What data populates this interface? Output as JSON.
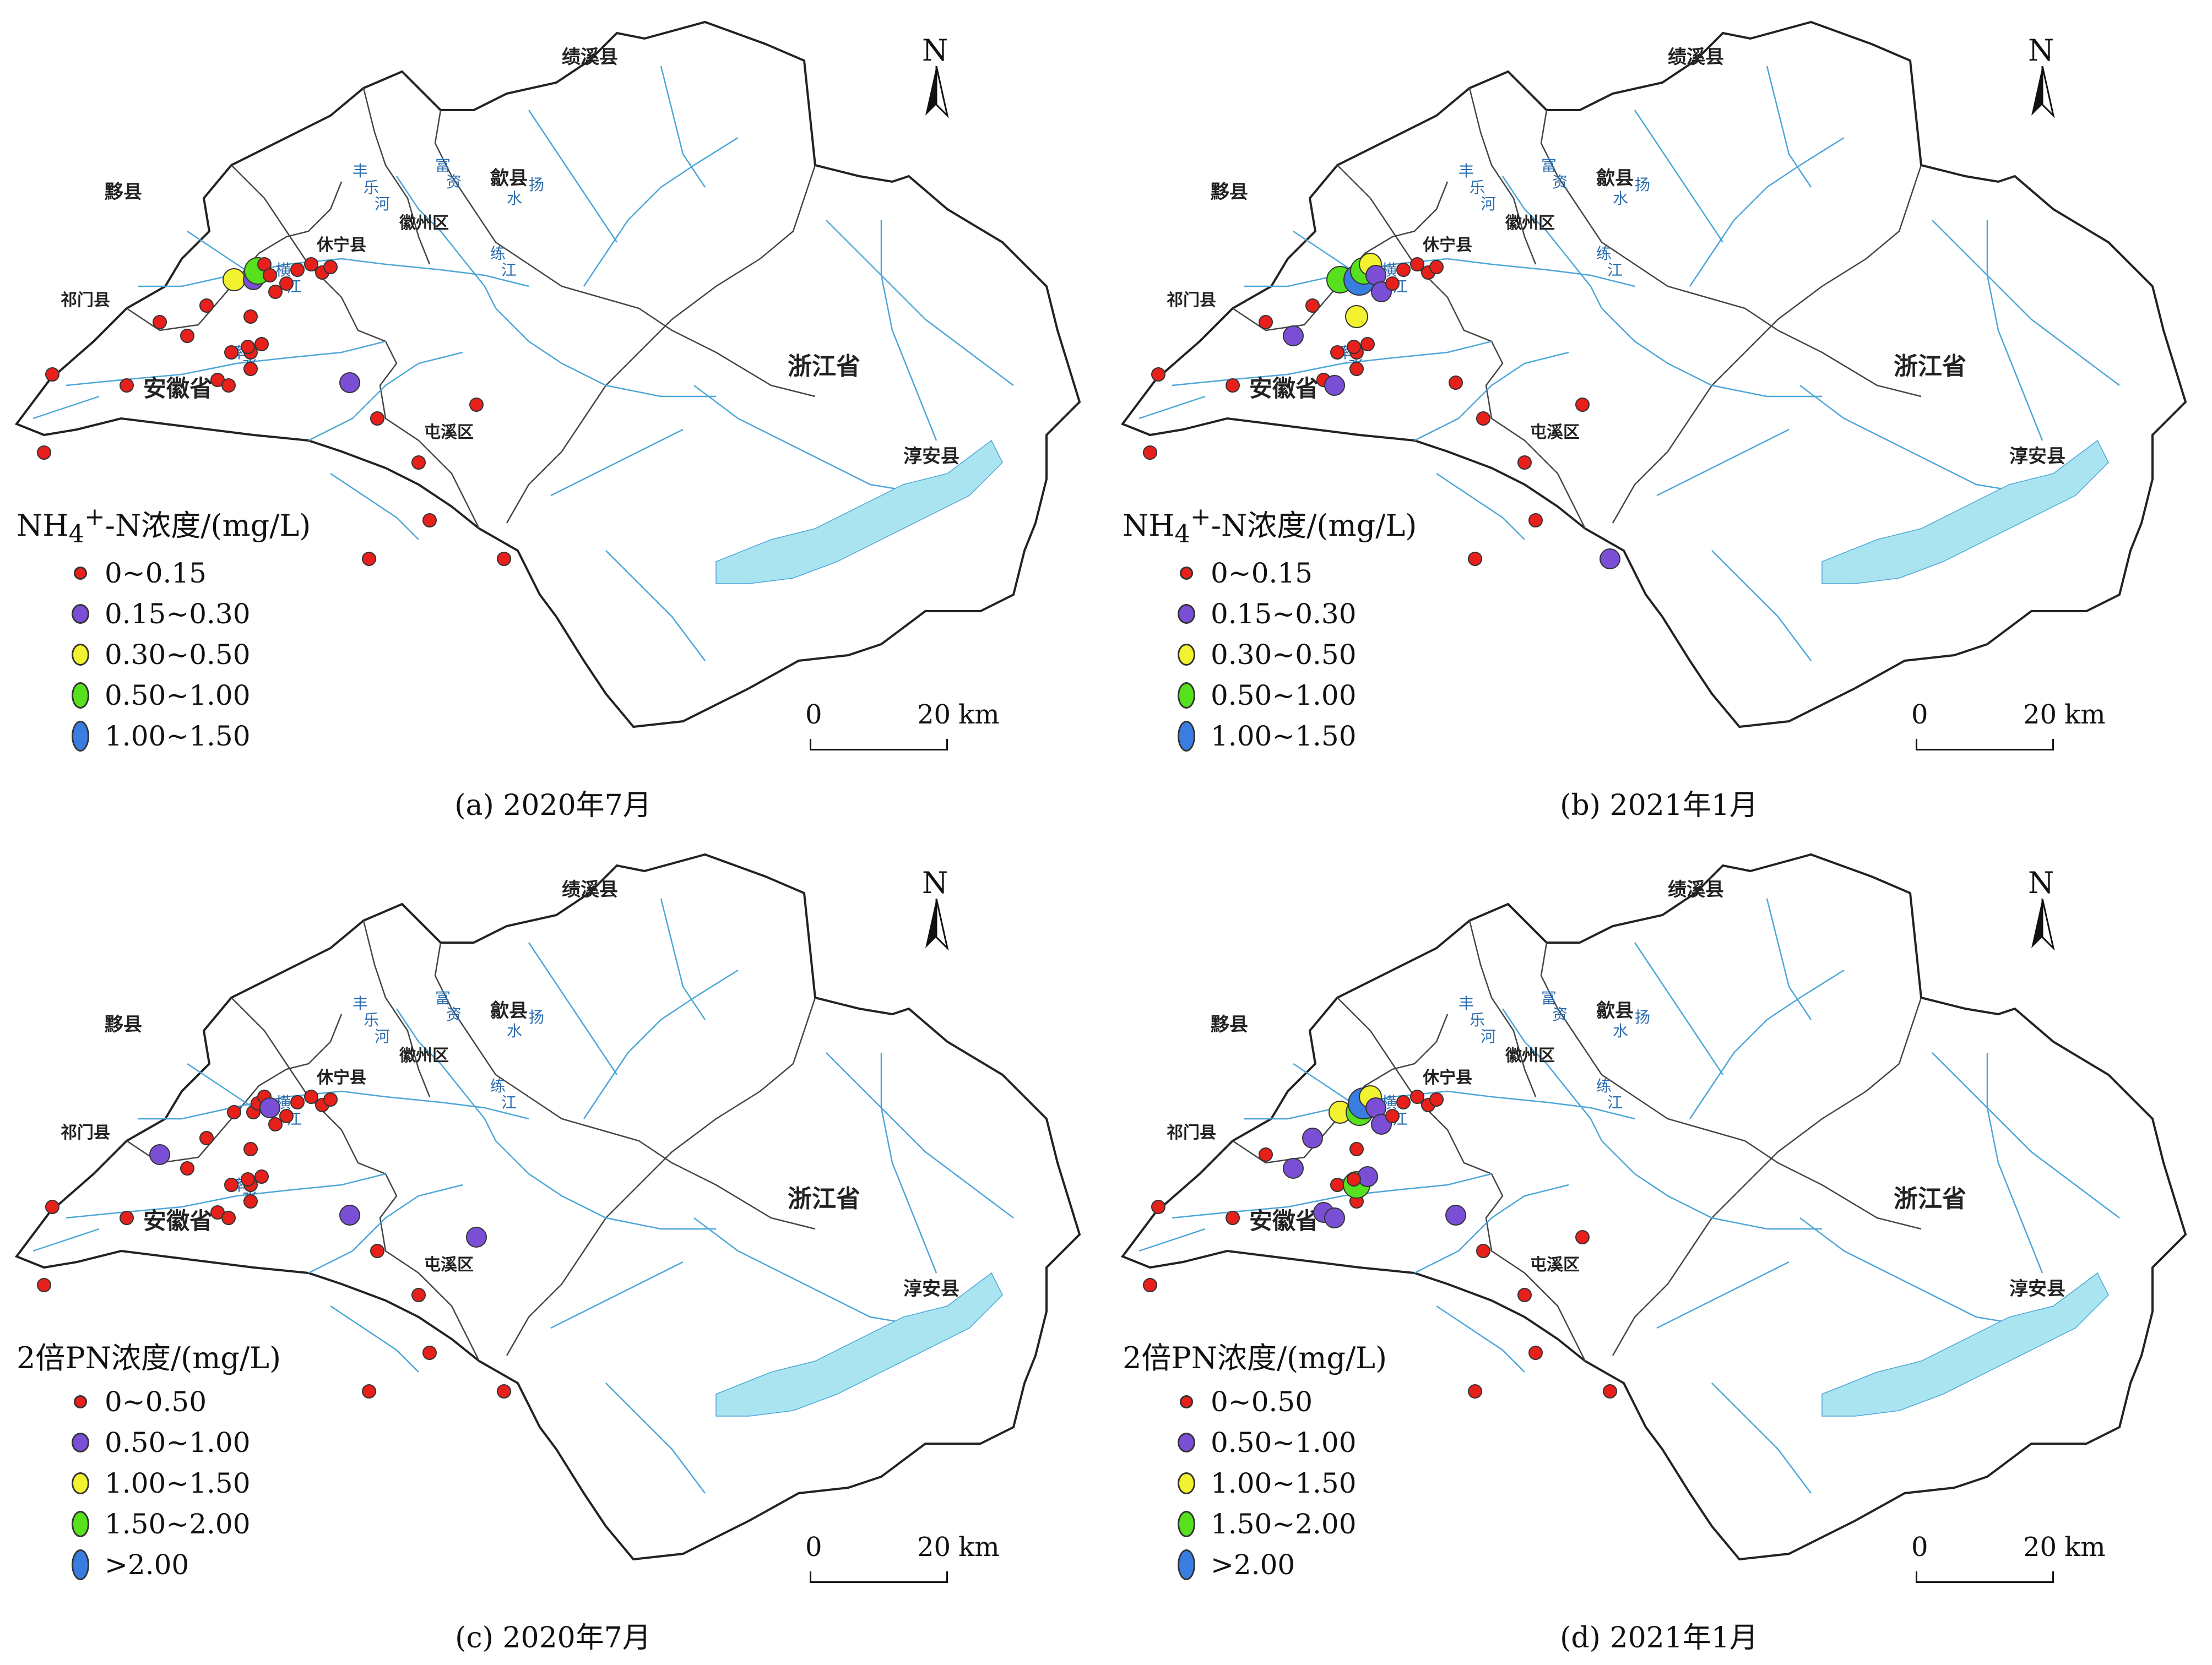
{
  "colors": {
    "river": "#4da6d8",
    "lake": "#a9e4f0",
    "boundary": "#222222",
    "county_line": "#444444",
    "class1": "#e8201b",
    "class2": "#7a4fd6",
    "class3": "#f2f230",
    "class4": "#56e01e",
    "class5": "#3a7de0"
  },
  "map_common": {
    "north_letter": "N",
    "scale_zero": "0",
    "scale_twenty": "20",
    "scale_unit": "km",
    "place_labels": {
      "jixi": "绩溪县",
      "yixian": "黟县",
      "shexian": "歙县",
      "huizhou": "徽州区",
      "xiuning": "休宁县",
      "qimen": "祁门县",
      "anhui": "安徽省",
      "tunxi": "屯溪区",
      "zhejiang": "浙江省",
      "chunan": "淳安县"
    },
    "river_labels": {
      "fule1": "丰",
      "fule2": "乐",
      "fule3": "河",
      "fuzi1": "富",
      "fuzi2": "资",
      "fuzi3": "水",
      "yang1": "扬",
      "heng1": "横",
      "heng2": "江",
      "lian1": "练",
      "lian2": "江",
      "shuai1": "率",
      "shuai2": "水"
    }
  },
  "panels": [
    {
      "caption": "(a)  2020年7月",
      "legend_title_html": "NH<sub>4</sub><sup>+</sup>-N浓度/(mg/L)",
      "legend_title": "NH4+-N浓度/(mg/L)",
      "classes": [
        "0~0.15",
        "0.15~0.30",
        "0.30~0.50",
        "0.50~1.00",
        "1.00~1.50"
      ],
      "sites": [
        {
          "site": 1,
          "class": 1
        },
        {
          "site": 2,
          "class": 1
        },
        {
          "site": 3,
          "class": 1
        },
        {
          "site": 4,
          "class": 1
        },
        {
          "site": 5,
          "class": 1
        },
        {
          "site": 6,
          "class": 1
        },
        {
          "site": 7,
          "class": 1
        },
        {
          "site": 8,
          "class": 1
        },
        {
          "site": 9,
          "class": 3
        },
        {
          "site": 10,
          "class": 2
        },
        {
          "site": 11,
          "class": 4
        },
        {
          "site": 12,
          "class": 1
        },
        {
          "site": 13,
          "class": 1
        },
        {
          "site": 14,
          "class": 1
        },
        {
          "site": 15,
          "class": 1
        },
        {
          "site": 16,
          "class": 1
        },
        {
          "site": 17,
          "class": 1
        },
        {
          "site": 18,
          "class": 1
        },
        {
          "site": 19,
          "class": 1
        },
        {
          "site": 20,
          "class": 1
        },
        {
          "site": 21,
          "class": 1
        },
        {
          "site": 22,
          "class": 1
        },
        {
          "site": 23,
          "class": 1
        },
        {
          "site": 24,
          "class": 2
        },
        {
          "site": 25,
          "class": 1
        },
        {
          "site": 26,
          "class": 1
        },
        {
          "site": 27,
          "class": 1
        },
        {
          "site": 28,
          "class": 1
        },
        {
          "site": 29,
          "class": 1
        },
        {
          "site": 30,
          "class": 1
        },
        {
          "site": 31,
          "class": 1
        },
        {
          "site": 32,
          "class": 1
        }
      ]
    },
    {
      "caption": "(b)  2021年1月",
      "legend_title_html": "NH<sub>4</sub><sup>+</sup>-N浓度/(mg/L)",
      "legend_title": "NH4+-N浓度/(mg/L)",
      "classes": [
        "0~0.15",
        "0.15~0.30",
        "0.30~0.50",
        "0.50~1.00",
        "1.00~1.50"
      ],
      "sites": [
        {
          "site": 1,
          "class": 1
        },
        {
          "site": 2,
          "class": 1
        },
        {
          "site": 3,
          "class": 1
        },
        {
          "site": 4,
          "class": 1
        },
        {
          "site": 5,
          "class": 2
        },
        {
          "site": 6,
          "class": 1
        },
        {
          "site": 7,
          "class": 1
        },
        {
          "site": 8,
          "class": 1
        },
        {
          "site": 9,
          "class": 4
        },
        {
          "site": 10,
          "class": 5
        },
        {
          "site": 11,
          "class": 4
        },
        {
          "site": 12,
          "class": 3
        },
        {
          "site": 13,
          "class": 2
        },
        {
          "site": 14,
          "class": 2
        },
        {
          "site": 15,
          "class": 1
        },
        {
          "site": 16,
          "class": 1
        },
        {
          "site": 17,
          "class": 1
        },
        {
          "site": 18,
          "class": 1
        },
        {
          "site": 19,
          "class": 1
        },
        {
          "site": 20,
          "class": 1
        },
        {
          "site": 21,
          "class": 2
        },
        {
          "site": 22,
          "class": 3
        },
        {
          "site": 23,
          "class": 1
        },
        {
          "site": 24,
          "class": 1
        },
        {
          "site": 25,
          "class": 1
        },
        {
          "site": 26,
          "class": 1
        },
        {
          "site": 27,
          "class": 1
        },
        {
          "site": 28,
          "class": 1
        },
        {
          "site": 29,
          "class": 1
        },
        {
          "site": 30,
          "class": 1
        },
        {
          "site": 31,
          "class": 1
        },
        {
          "site": 32,
          "class": 2
        }
      ]
    },
    {
      "caption": "(c)  2020年7月",
      "legend_title_html": "2倍PN浓度/(mg/L)",
      "legend_title": "2倍PN浓度/(mg/L)",
      "classes": [
        "0~0.50",
        "0.50~1.00",
        "1.00~1.50",
        "1.50~2.00",
        ">2.00"
      ],
      "sites": [
        {
          "site": 1,
          "class": 1
        },
        {
          "site": 2,
          "class": 1
        },
        {
          "site": 3,
          "class": 1
        },
        {
          "site": 4,
          "class": 2
        },
        {
          "site": 5,
          "class": 1
        },
        {
          "site": 6,
          "class": 1
        },
        {
          "site": 7,
          "class": 1
        },
        {
          "site": 8,
          "class": 1
        },
        {
          "site": 9,
          "class": 1
        },
        {
          "site": 10,
          "class": 1
        },
        {
          "site": 11,
          "class": 1
        },
        {
          "site": 12,
          "class": 1
        },
        {
          "site": 13,
          "class": 2
        },
        {
          "site": 14,
          "class": 1
        },
        {
          "site": 15,
          "class": 1
        },
        {
          "site": 16,
          "class": 1
        },
        {
          "site": 17,
          "class": 1
        },
        {
          "site": 18,
          "class": 1
        },
        {
          "site": 19,
          "class": 1
        },
        {
          "site": 20,
          "class": 1
        },
        {
          "site": 21,
          "class": 1
        },
        {
          "site": 22,
          "class": 1
        },
        {
          "site": 23,
          "class": 1
        },
        {
          "site": 24,
          "class": 2
        },
        {
          "site": 25,
          "class": 1
        },
        {
          "site": 26,
          "class": 1
        },
        {
          "site": 27,
          "class": 1
        },
        {
          "site": 28,
          "class": 1
        },
        {
          "site": 29,
          "class": 1
        },
        {
          "site": 30,
          "class": 2
        },
        {
          "site": 31,
          "class": 1
        },
        {
          "site": 32,
          "class": 1
        }
      ]
    },
    {
      "caption": "(d)  2021年1月",
      "legend_title_html": "2倍PN浓度/(mg/L)",
      "legend_title": "2倍PN浓度/(mg/L)",
      "classes": [
        "0~0.50",
        "0.50~1.00",
        "1.00~1.50",
        "1.50~2.00",
        ">2.00"
      ],
      "sites": [
        {
          "site": 1,
          "class": 1
        },
        {
          "site": 2,
          "class": 1
        },
        {
          "site": 3,
          "class": 1
        },
        {
          "site": 4,
          "class": 1
        },
        {
          "site": 5,
          "class": 2
        },
        {
          "site": 6,
          "class": 2
        },
        {
          "site": 7,
          "class": 1
        },
        {
          "site": 8,
          "class": 1
        },
        {
          "site": 9,
          "class": 3
        },
        {
          "site": 10,
          "class": 4
        },
        {
          "site": 11,
          "class": 5
        },
        {
          "site": 12,
          "class": 3
        },
        {
          "site": 13,
          "class": 2
        },
        {
          "site": 14,
          "class": 2
        },
        {
          "site": 15,
          "class": 1
        },
        {
          "site": 16,
          "class": 1
        },
        {
          "site": 17,
          "class": 1
        },
        {
          "site": 18,
          "class": 4
        },
        {
          "site": 19,
          "class": 2
        },
        {
          "site": 20,
          "class": 2
        },
        {
          "site": 21,
          "class": 2
        },
        {
          "site": 22,
          "class": 1
        },
        {
          "site": 23,
          "class": 1
        },
        {
          "site": 24,
          "class": 2
        },
        {
          "site": 25,
          "class": 1
        },
        {
          "site": 26,
          "class": 1
        },
        {
          "site": 27,
          "class": 1
        },
        {
          "site": 28,
          "class": 1
        },
        {
          "site": 29,
          "class": 1
        },
        {
          "site": 30,
          "class": 1
        },
        {
          "site": 31,
          "class": 1
        },
        {
          "site": 32,
          "class": 1
        }
      ]
    }
  ]
}
